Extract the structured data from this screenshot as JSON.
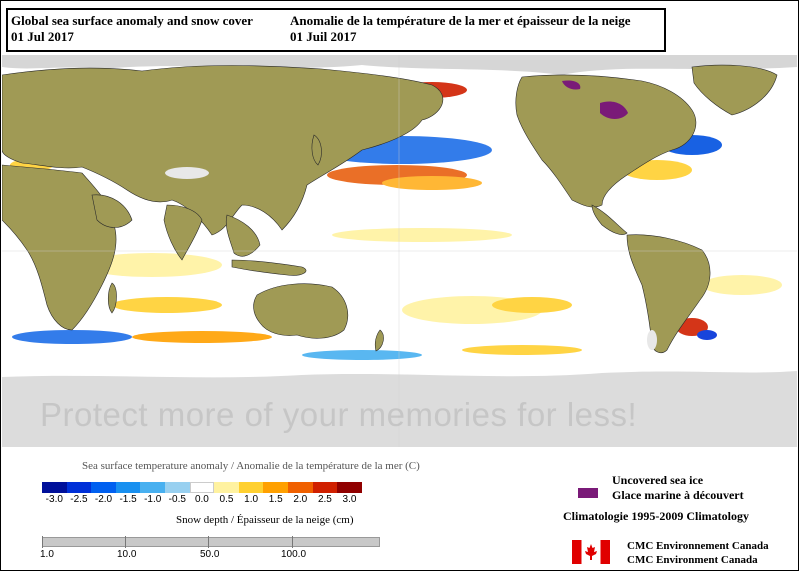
{
  "header": {
    "title_en": "Global sea surface anomaly and snow cover",
    "date_en": "01 Jul 2017",
    "title_fr": "Anomalie de la température de la mer et épaisseur de la neige",
    "date_fr": "01 Juil 2017"
  },
  "watermark": "Protect more of your memories for less!",
  "sst_legend": {
    "title": "Sea surface temperature anomaly / Anomalie de la température de la mer (C)",
    "ticks": [
      "-3.0",
      "-2.5",
      "-2.0",
      "-1.5",
      "-1.0",
      "-0.5",
      "0.0",
      "0.5",
      "1.0",
      "1.5",
      "2.0",
      "2.5",
      "3.0"
    ],
    "colors": [
      "#00109a",
      "#0030d8",
      "#0060f0",
      "#1890f0",
      "#48b0f0",
      "#98d0f0",
      "#ffffff",
      "#fff2a0",
      "#ffd030",
      "#ffa000",
      "#f06000",
      "#d02000",
      "#900000"
    ]
  },
  "snow_legend": {
    "title": "Snow depth / Épaisseur de la neige (cm)",
    "ticks": [
      "1.0",
      "10.0",
      "50.0",
      "100.0"
    ]
  },
  "ice_legend": {
    "label_en": "Uncovered sea ice",
    "label_fr": "Glace marine à découvert",
    "color": "#7a1a78"
  },
  "climatology": "Climatologie 1995-2009 Climatology",
  "agency": {
    "line1": "CMC Environnement Canada",
    "line2": "CMC Environment Canada"
  },
  "colors": {
    "land": "#a09a55",
    "sea_ice": "#d0d0d0",
    "flag_red": "#e00000"
  }
}
